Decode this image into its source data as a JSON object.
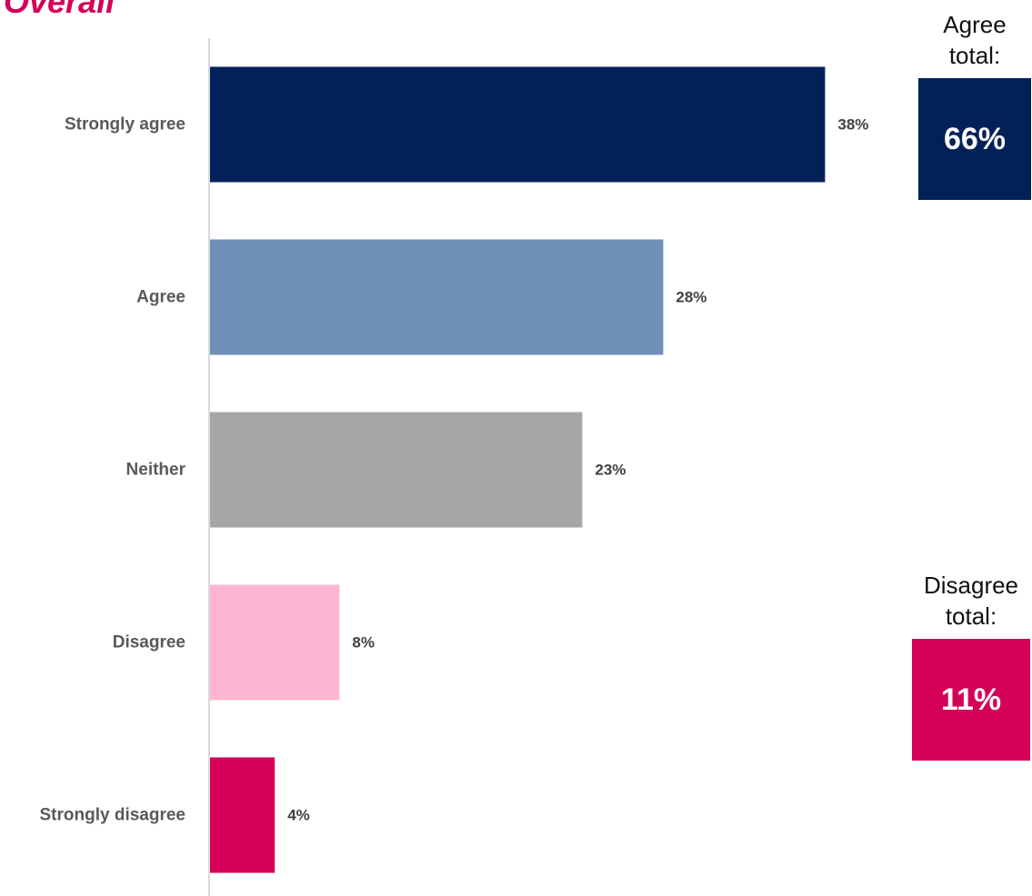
{
  "page_title": "Overall",
  "chart_data": {
    "type": "bar",
    "orientation": "horizontal",
    "categories": [
      "Strongly agree",
      "Agree",
      "Neither",
      "Disagree",
      "Strongly disagree"
    ],
    "values": [
      38,
      28,
      23,
      8,
      4
    ],
    "value_labels": [
      "38%",
      "28%",
      "23%",
      "8%",
      "4%"
    ],
    "colors": [
      "#032159",
      "#6e8fb8",
      "#a6a6a6",
      "#fdb6d2",
      "#d50057"
    ],
    "xlim": [
      0,
      40
    ],
    "grid": false,
    "title": "",
    "xlabel": "",
    "ylabel": ""
  },
  "summaries": {
    "agree": {
      "label_line1": "Agree",
      "label_line2": "total:",
      "value": "66%",
      "color": "#032159"
    },
    "disagree": {
      "label_line1": "Disagree",
      "label_line2": "total:",
      "value": "11%",
      "color": "#d50057"
    }
  }
}
